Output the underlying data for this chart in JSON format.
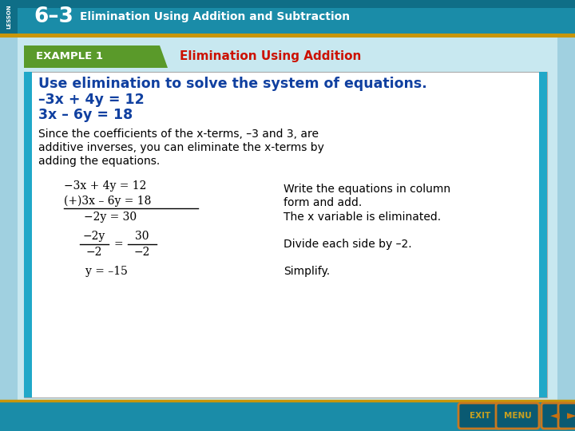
{
  "fig_width": 7.2,
  "fig_height": 5.4,
  "dpi": 100,
  "header_bg": "#1a8ca8",
  "header_bg2": "#1595b5",
  "header_dark": "#0f6e87",
  "lesson_label": "LESSON",
  "header_number": "6–3",
  "header_title": "Elimination Using Addition and Subtraction",
  "example_bg": "#5a9a2a",
  "example_bg2": "#4a8a1a",
  "example_label": "EXAMPLE 1",
  "example_title": "Elimination Using Addition",
  "example_title_color": "#cc1100",
  "gold_color": "#c8960a",
  "main_bg": "#c8e8f0",
  "side_bg": "#a0d0e0",
  "content_bg": "#ffffff",
  "bold_blue_color": "#1040a0",
  "bold_blue_text1": "Use elimination to solve the system of equations.",
  "bold_blue_text2": "–3x + 4y = 12",
  "bold_blue_text3": "3x – 6y = 18",
  "para1": "Since the coefficients of the x-terms, –3 and 3, are",
  "para2": "additive inverses, you can eliminate the x-terms by",
  "para3": "adding the equations.",
  "eq1": "−3x + 4y = 12",
  "eq2": "(+)3x – 6y = 18",
  "eq3": "−2y = 30",
  "frac_num_left": "−2y",
  "frac_den_left": "−2",
  "frac_num_right": "30",
  "frac_den_right": "−2",
  "eq5": "y = –15",
  "desc1a": "Write the equations in column",
  "desc1b": "form and add.",
  "desc2": "The x variable is eliminated.",
  "desc3": "Divide each side by –2.",
  "desc4": "Simplify.",
  "footer_bg": "#1a8ca8",
  "btn_color": "#1a8ca8",
  "btn_gold": "#c87010",
  "teal_accent": "#20a8c8"
}
